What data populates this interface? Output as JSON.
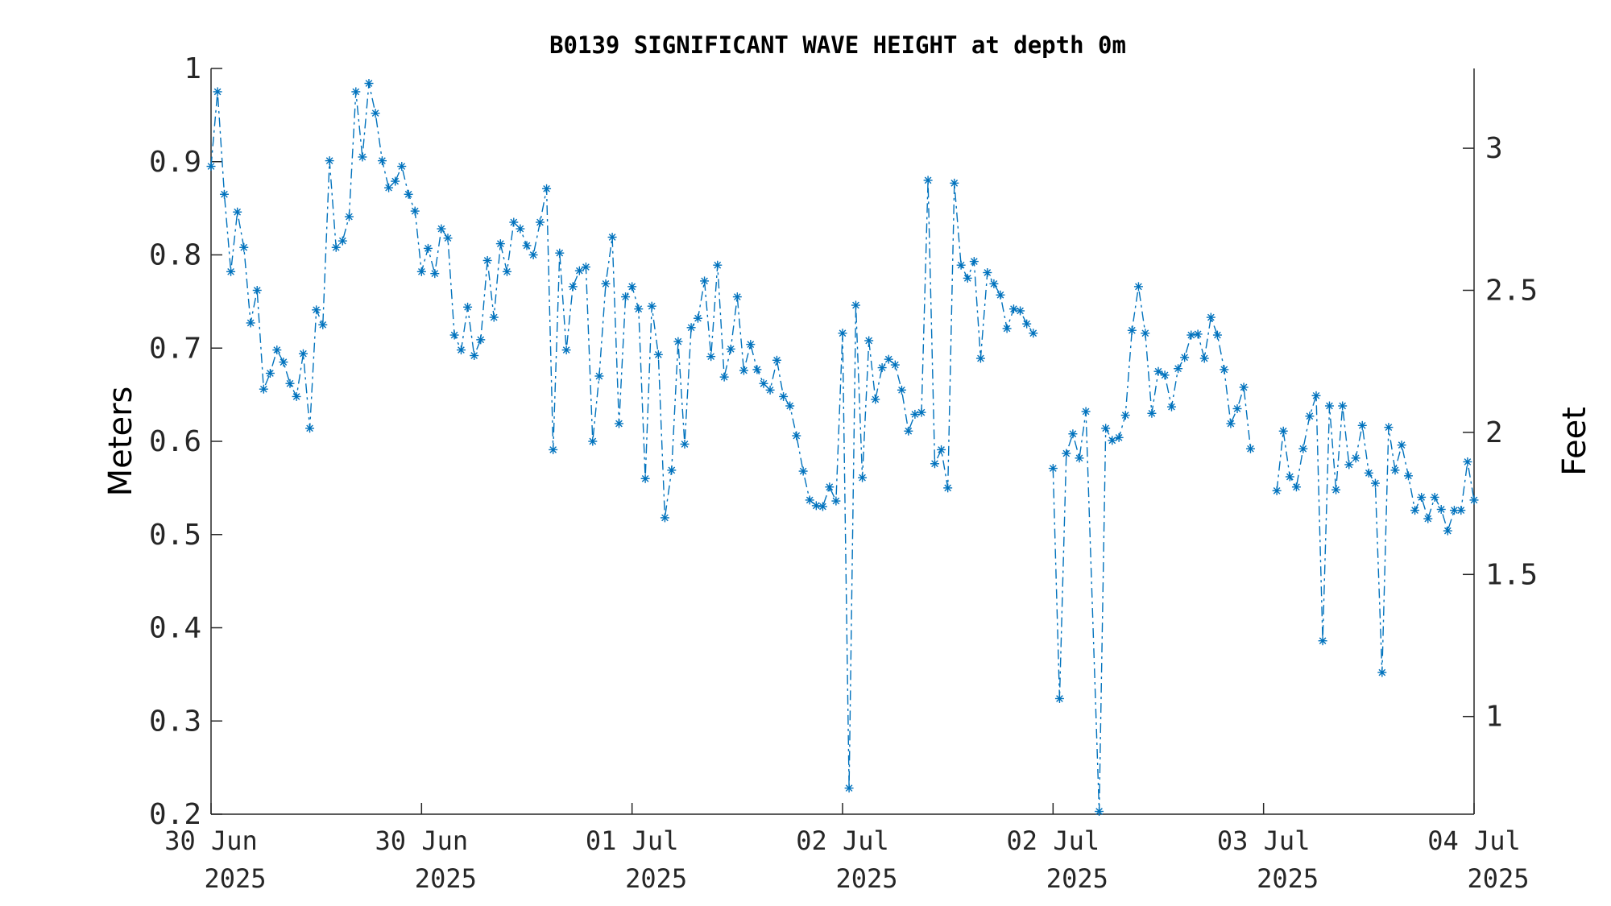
{
  "chart_data": {
    "type": "line",
    "title": "B0139 SIGNIFICANT WAVE HEIGHT at depth 0m",
    "ylabel": "Meters",
    "y2label": "Feet",
    "ylim": [
      0.2,
      1.0
    ],
    "yticks": [
      0.2,
      0.3,
      0.4,
      0.5,
      0.6,
      0.7,
      0.8,
      0.9,
      1.0
    ],
    "ytick_labels": [
      "0.2",
      "0.3",
      "0.4",
      "0.5",
      "0.6",
      "0.7",
      "0.8",
      "0.9",
      "1"
    ],
    "y2ticks": [
      1.0,
      1.5,
      2.0,
      2.5,
      3.0
    ],
    "y2tick_labels": [
      "1",
      "1.5",
      "2",
      "2.5",
      "3"
    ],
    "y2_per_y": 3.28084,
    "xlim": [
      0,
      6
    ],
    "xticks": [
      0,
      1,
      2,
      3,
      4,
      5,
      6
    ],
    "xtick_labels": [
      {
        "line1": "30 Jun",
        "line2": "2025"
      },
      {
        "line1": "30 Jun",
        "line2": "2025"
      },
      {
        "line1": "01 Jul",
        "line2": "2025"
      },
      {
        "line1": "02 Jul",
        "line2": "2025"
      },
      {
        "line1": "02 Jul",
        "line2": "2025"
      },
      {
        "line1": "03 Jul",
        "line2": "2025"
      },
      {
        "line1": "04 Jul",
        "line2": "2025"
      }
    ],
    "grid": false,
    "line_style": "dash-dot",
    "marker": "asterisk",
    "color": "#0072BD",
    "series": [
      {
        "values": [
          [
            0.0,
            0.895
          ],
          [
            0.031,
            0.975
          ],
          [
            0.063,
            0.865
          ],
          [
            0.094,
            0.782
          ],
          [
            0.125,
            0.846
          ],
          [
            0.156,
            0.808
          ],
          [
            0.188,
            0.727
          ],
          [
            0.219,
            0.762
          ],
          [
            0.25,
            0.656
          ],
          [
            0.281,
            0.673
          ],
          [
            0.313,
            0.698
          ],
          [
            0.344,
            0.685
          ],
          [
            0.375,
            0.662
          ],
          [
            0.406,
            0.648
          ],
          [
            0.438,
            0.694
          ],
          [
            0.469,
            0.614
          ],
          [
            0.5,
            0.741
          ],
          [
            0.531,
            0.725
          ],
          [
            0.563,
            0.901
          ],
          [
            0.594,
            0.808
          ],
          [
            0.625,
            0.815
          ],
          [
            0.656,
            0.841
          ],
          [
            0.688,
            0.975
          ],
          [
            0.719,
            0.905
          ],
          [
            0.75,
            0.984
          ],
          [
            0.781,
            0.952
          ],
          [
            0.813,
            0.901
          ],
          [
            0.844,
            0.872
          ],
          [
            0.875,
            0.879
          ],
          [
            0.906,
            0.895
          ],
          [
            0.938,
            0.865
          ],
          [
            0.969,
            0.847
          ],
          [
            1.0,
            0.782
          ],
          [
            1.031,
            0.807
          ],
          [
            1.063,
            0.78
          ],
          [
            1.094,
            0.828
          ],
          [
            1.125,
            0.818
          ],
          [
            1.156,
            0.714
          ],
          [
            1.188,
            0.698
          ],
          [
            1.219,
            0.744
          ],
          [
            1.25,
            0.692
          ],
          [
            1.281,
            0.709
          ],
          [
            1.313,
            0.794
          ],
          [
            1.344,
            0.733
          ],
          [
            1.375,
            0.812
          ],
          [
            1.406,
            0.782
          ],
          [
            1.438,
            0.835
          ],
          [
            1.469,
            0.828
          ],
          [
            1.5,
            0.81
          ],
          [
            1.531,
            0.8
          ],
          [
            1.563,
            0.835
          ],
          [
            1.594,
            0.871
          ],
          [
            1.625,
            0.591
          ],
          [
            1.656,
            0.802
          ],
          [
            1.688,
            0.698
          ],
          [
            1.719,
            0.766
          ],
          [
            1.75,
            0.783
          ],
          [
            1.781,
            0.787
          ],
          [
            1.813,
            0.6
          ],
          [
            1.844,
            0.67
          ],
          [
            1.875,
            0.769
          ],
          [
            1.906,
            0.819
          ],
          [
            1.938,
            0.619
          ],
          [
            1.969,
            0.755
          ],
          [
            2.0,
            0.766
          ],
          [
            2.031,
            0.742
          ],
          [
            2.063,
            0.56
          ],
          [
            2.094,
            0.745
          ],
          [
            2.125,
            0.693
          ],
          [
            2.156,
            0.518
          ],
          [
            2.188,
            0.569
          ],
          [
            2.219,
            0.707
          ],
          [
            2.25,
            0.597
          ],
          [
            2.281,
            0.722
          ],
          [
            2.313,
            0.732
          ],
          [
            2.344,
            0.772
          ],
          [
            2.375,
            0.691
          ],
          [
            2.406,
            0.789
          ],
          [
            2.438,
            0.669
          ],
          [
            2.469,
            0.699
          ],
          [
            2.5,
            0.755
          ],
          [
            2.531,
            0.676
          ],
          [
            2.563,
            0.704
          ],
          [
            2.594,
            0.677
          ],
          [
            2.625,
            0.662
          ],
          [
            2.656,
            0.655
          ],
          [
            2.688,
            0.687
          ],
          [
            2.719,
            0.648
          ],
          [
            2.75,
            0.638
          ],
          [
            2.781,
            0.606
          ],
          [
            2.813,
            0.568
          ],
          [
            2.844,
            0.537
          ],
          [
            2.875,
            0.531
          ],
          [
            2.906,
            0.53
          ],
          [
            2.938,
            0.551
          ],
          [
            2.969,
            0.536
          ],
          [
            3.0,
            0.716
          ],
          [
            3.031,
            0.228
          ],
          [
            3.063,
            0.746
          ],
          [
            3.094,
            0.561
          ],
          [
            3.125,
            0.708
          ],
          [
            3.156,
            0.645
          ],
          [
            3.188,
            0.679
          ],
          [
            3.219,
            0.688
          ],
          [
            3.25,
            0.682
          ],
          [
            3.281,
            0.655
          ],
          [
            3.313,
            0.611
          ],
          [
            3.344,
            0.629
          ],
          [
            3.375,
            0.631
          ],
          [
            3.406,
            0.88
          ],
          [
            3.438,
            0.576
          ],
          [
            3.469,
            0.591
          ],
          [
            3.5,
            0.55
          ],
          [
            3.531,
            0.877
          ],
          [
            3.563,
            0.789
          ],
          [
            3.594,
            0.775
          ],
          [
            3.625,
            0.793
          ],
          [
            3.656,
            0.689
          ],
          [
            3.688,
            0.781
          ],
          [
            3.719,
            0.769
          ],
          [
            3.75,
            0.757
          ],
          [
            3.781,
            0.721
          ],
          [
            3.813,
            0.742
          ],
          [
            3.844,
            0.74
          ],
          [
            3.875,
            0.726
          ],
          [
            3.906,
            0.716
          ],
          null,
          [
            4.0,
            0.571
          ],
          [
            4.031,
            0.324
          ],
          [
            4.063,
            0.587
          ],
          [
            4.094,
            0.608
          ],
          [
            4.125,
            0.582
          ],
          [
            4.156,
            0.632
          ],
          [
            4.219,
            0.203
          ],
          [
            4.25,
            0.614
          ],
          [
            4.281,
            0.601
          ],
          [
            4.313,
            0.604
          ],
          [
            4.344,
            0.628
          ],
          [
            4.375,
            0.719
          ],
          [
            4.406,
            0.766
          ],
          [
            4.438,
            0.716
          ],
          [
            4.469,
            0.63
          ],
          [
            4.5,
            0.675
          ],
          [
            4.531,
            0.671
          ],
          [
            4.563,
            0.637
          ],
          [
            4.594,
            0.678
          ],
          [
            4.625,
            0.69
          ],
          [
            4.656,
            0.714
          ],
          [
            4.688,
            0.715
          ],
          [
            4.719,
            0.689
          ],
          [
            4.75,
            0.733
          ],
          [
            4.781,
            0.714
          ],
          [
            4.813,
            0.677
          ],
          [
            4.844,
            0.619
          ],
          [
            4.875,
            0.635
          ],
          [
            4.906,
            0.658
          ],
          [
            4.938,
            0.592
          ],
          null,
          [
            5.063,
            0.547
          ],
          [
            5.094,
            0.611
          ],
          [
            5.125,
            0.562
          ],
          [
            5.156,
            0.551
          ],
          [
            5.188,
            0.592
          ],
          [
            5.219,
            0.627
          ],
          [
            5.25,
            0.649
          ],
          [
            5.281,
            0.386
          ],
          [
            5.313,
            0.638
          ],
          [
            5.344,
            0.548
          ],
          [
            5.375,
            0.638
          ],
          [
            5.406,
            0.575
          ],
          [
            5.438,
            0.582
          ],
          [
            5.469,
            0.617
          ],
          [
            5.5,
            0.566
          ],
          [
            5.531,
            0.555
          ],
          [
            5.563,
            0.352
          ],
          [
            5.594,
            0.615
          ],
          [
            5.625,
            0.569
          ],
          [
            5.656,
            0.596
          ],
          [
            5.688,
            0.563
          ],
          [
            5.719,
            0.526
          ],
          [
            5.75,
            0.54
          ],
          [
            5.781,
            0.517
          ],
          [
            5.813,
            0.54
          ],
          [
            5.844,
            0.527
          ],
          [
            5.875,
            0.504
          ],
          [
            5.906,
            0.526
          ],
          [
            5.938,
            0.526
          ],
          [
            5.969,
            0.578
          ],
          [
            6.0,
            0.537
          ]
        ]
      }
    ]
  }
}
